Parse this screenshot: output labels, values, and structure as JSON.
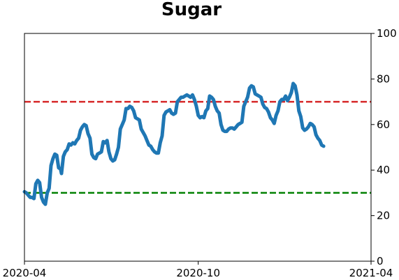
{
  "chart_data": {
    "type": "line",
    "title": "Sugar",
    "xlabel": "",
    "ylabel": "",
    "ylim": [
      0,
      100
    ],
    "yticks": [
      0,
      20,
      40,
      60,
      80,
      100
    ],
    "y_axis_side": "right",
    "xlim": [
      "2020-04-01",
      "2021-04-01"
    ],
    "xticks": [
      {
        "date": "2020-04-01",
        "label": "2020-04"
      },
      {
        "date": "2020-10-01",
        "label": "2020-10"
      },
      {
        "date": "2021-04-01",
        "label": "2021-04"
      }
    ],
    "grid": false,
    "reference_lines": [
      {
        "y": 70,
        "color": "#d62728",
        "style": "dashed"
      },
      {
        "y": 30,
        "color": "#008000",
        "style": "dashed"
      }
    ],
    "series": [
      {
        "color": "#1f77b4",
        "points": [
          [
            "2020-04-01",
            30.5
          ],
          [
            "2020-04-03",
            30
          ],
          [
            "2020-04-05",
            29
          ],
          [
            "2020-04-07",
            28
          ],
          [
            "2020-04-09",
            28
          ],
          [
            "2020-04-11",
            27.5
          ],
          [
            "2020-04-13",
            34
          ],
          [
            "2020-04-15",
            35.5
          ],
          [
            "2020-04-17",
            34.5
          ],
          [
            "2020-04-19",
            28
          ],
          [
            "2020-04-21",
            26
          ],
          [
            "2020-04-23",
            25
          ],
          [
            "2020-04-25",
            30
          ],
          [
            "2020-04-27",
            32
          ],
          [
            "2020-04-29",
            42
          ],
          [
            "2020-05-01",
            45
          ],
          [
            "2020-05-03",
            47
          ],
          [
            "2020-05-05",
            46.5
          ],
          [
            "2020-05-07",
            41
          ],
          [
            "2020-05-09",
            40.5
          ],
          [
            "2020-05-10",
            38.5
          ],
          [
            "2020-05-12",
            46
          ],
          [
            "2020-05-14",
            48
          ],
          [
            "2020-05-16",
            49
          ],
          [
            "2020-05-18",
            51.5
          ],
          [
            "2020-05-20",
            51
          ],
          [
            "2020-05-22",
            52
          ],
          [
            "2020-05-24",
            51.5
          ],
          [
            "2020-05-26",
            53
          ],
          [
            "2020-05-28",
            54
          ],
          [
            "2020-05-30",
            57.5
          ],
          [
            "2020-06-01",
            59
          ],
          [
            "2020-06-03",
            60
          ],
          [
            "2020-06-05",
            59.5
          ],
          [
            "2020-06-07",
            56
          ],
          [
            "2020-06-09",
            54
          ],
          [
            "2020-06-11",
            47
          ],
          [
            "2020-06-13",
            45.5
          ],
          [
            "2020-06-15",
            45
          ],
          [
            "2020-06-17",
            47
          ],
          [
            "2020-06-19",
            47.5
          ],
          [
            "2020-06-21",
            48
          ],
          [
            "2020-06-23",
            52.5
          ],
          [
            "2020-06-25",
            52
          ],
          [
            "2020-06-27",
            53
          ],
          [
            "2020-06-29",
            48
          ],
          [
            "2020-07-01",
            45
          ],
          [
            "2020-07-03",
            44
          ],
          [
            "2020-07-05",
            44.5
          ],
          [
            "2020-07-07",
            47
          ],
          [
            "2020-07-09",
            50
          ],
          [
            "2020-07-11",
            58
          ],
          [
            "2020-07-13",
            60
          ],
          [
            "2020-07-15",
            62
          ],
          [
            "2020-07-17",
            67
          ],
          [
            "2020-07-19",
            67
          ],
          [
            "2020-07-21",
            68
          ],
          [
            "2020-07-23",
            67.5
          ],
          [
            "2020-07-25",
            66
          ],
          [
            "2020-07-27",
            63
          ],
          [
            "2020-07-29",
            62.5
          ],
          [
            "2020-07-31",
            62
          ],
          [
            "2020-08-02",
            58
          ],
          [
            "2020-08-04",
            56.5
          ],
          [
            "2020-08-06",
            55
          ],
          [
            "2020-08-08",
            53
          ],
          [
            "2020-08-10",
            51
          ],
          [
            "2020-08-12",
            50.5
          ],
          [
            "2020-08-14",
            49
          ],
          [
            "2020-08-16",
            48
          ],
          [
            "2020-08-18",
            47.5
          ],
          [
            "2020-08-20",
            47.5
          ],
          [
            "2020-08-22",
            52
          ],
          [
            "2020-08-24",
            55
          ],
          [
            "2020-08-26",
            64
          ],
          [
            "2020-08-28",
            65.5
          ],
          [
            "2020-08-30",
            66
          ],
          [
            "2020-09-01",
            66.5
          ],
          [
            "2020-09-03",
            65
          ],
          [
            "2020-09-05",
            64.5
          ],
          [
            "2020-09-07",
            65
          ],
          [
            "2020-09-09",
            70
          ],
          [
            "2020-09-11",
            71
          ],
          [
            "2020-09-13",
            72
          ],
          [
            "2020-09-15",
            72
          ],
          [
            "2020-09-17",
            72.5
          ],
          [
            "2020-09-19",
            73
          ],
          [
            "2020-09-21",
            72.5
          ],
          [
            "2020-09-23",
            72
          ],
          [
            "2020-09-25",
            73
          ],
          [
            "2020-09-27",
            71
          ],
          [
            "2020-09-29",
            68
          ],
          [
            "2020-10-01",
            64
          ],
          [
            "2020-10-03",
            63
          ],
          [
            "2020-10-05",
            63.5
          ],
          [
            "2020-10-07",
            63
          ],
          [
            "2020-10-09",
            66
          ],
          [
            "2020-10-11",
            67
          ],
          [
            "2020-10-13",
            72.5
          ],
          [
            "2020-10-15",
            72
          ],
          [
            "2020-10-17",
            71
          ],
          [
            "2020-10-19",
            68
          ],
          [
            "2020-10-21",
            66
          ],
          [
            "2020-10-23",
            65
          ],
          [
            "2020-10-25",
            60
          ],
          [
            "2020-10-27",
            57.5
          ],
          [
            "2020-10-29",
            57
          ],
          [
            "2020-10-31",
            57
          ],
          [
            "2020-11-02",
            58
          ],
          [
            "2020-11-04",
            58.5
          ],
          [
            "2020-11-06",
            58.5
          ],
          [
            "2020-11-08",
            58
          ],
          [
            "2020-11-10",
            59
          ],
          [
            "2020-11-12",
            60
          ],
          [
            "2020-11-14",
            60.5
          ],
          [
            "2020-11-16",
            61
          ],
          [
            "2020-11-18",
            68
          ],
          [
            "2020-11-20",
            70
          ],
          [
            "2020-11-22",
            72
          ],
          [
            "2020-11-24",
            76
          ],
          [
            "2020-11-26",
            77
          ],
          [
            "2020-11-28",
            76.5
          ],
          [
            "2020-11-30",
            73.5
          ],
          [
            "2020-12-02",
            73
          ],
          [
            "2020-12-04",
            72.5
          ],
          [
            "2020-12-06",
            72
          ],
          [
            "2020-12-08",
            69
          ],
          [
            "2020-12-10",
            67.5
          ],
          [
            "2020-12-12",
            67
          ],
          [
            "2020-12-14",
            65.5
          ],
          [
            "2020-12-16",
            63
          ],
          [
            "2020-12-18",
            62
          ],
          [
            "2020-12-20",
            60.5
          ],
          [
            "2020-12-22",
            64
          ],
          [
            "2020-12-24",
            66
          ],
          [
            "2020-12-26",
            70
          ],
          [
            "2020-12-28",
            71
          ],
          [
            "2020-12-30",
            71
          ],
          [
            "2021-01-01",
            72.5
          ],
          [
            "2021-01-03",
            70.5
          ],
          [
            "2021-01-05",
            72
          ],
          [
            "2021-01-07",
            74
          ],
          [
            "2021-01-09",
            78
          ],
          [
            "2021-01-11",
            77
          ],
          [
            "2021-01-13",
            73
          ],
          [
            "2021-01-15",
            66
          ],
          [
            "2021-01-17",
            63.5
          ],
          [
            "2021-01-19",
            58.5
          ],
          [
            "2021-01-21",
            57.5
          ],
          [
            "2021-01-23",
            58
          ],
          [
            "2021-01-25",
            59
          ],
          [
            "2021-01-27",
            60.5
          ],
          [
            "2021-01-29",
            60
          ],
          [
            "2021-01-31",
            59
          ],
          [
            "2021-02-02",
            55.5
          ],
          [
            "2021-02-04",
            54
          ],
          [
            "2021-02-06",
            53
          ],
          [
            "2021-02-08",
            51
          ],
          [
            "2021-02-10",
            50.5
          ]
        ]
      }
    ]
  }
}
